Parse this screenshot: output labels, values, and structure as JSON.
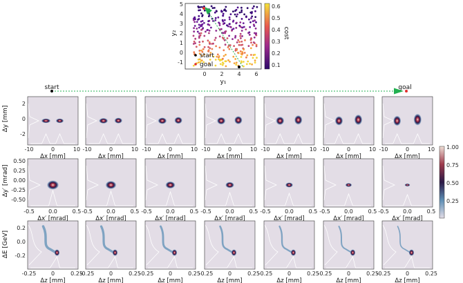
{
  "figure": {
    "scatter": {
      "xlabel": "y₁",
      "ylabel": "y₂",
      "xticks": [
        "0",
        "2",
        "4",
        "6"
      ],
      "yticks": [
        "5",
        "4",
        "3",
        "2",
        "1",
        "0",
        "-1"
      ],
      "legend": [
        "start",
        "goal"
      ],
      "colorbar_label": "cost",
      "colorbar_ticks": [
        "0.6",
        "0.5",
        "0.4",
        "0.3",
        "0.2",
        "0.1"
      ]
    },
    "trajectory": {
      "start_label": "start",
      "goal_label": "goal"
    },
    "rows": [
      {
        "ylabel": "Δy [mm]",
        "yticks": [
          "2",
          "0",
          "-2"
        ],
        "xlabel": "Δx [mm]",
        "xticks": [
          "-10",
          "0",
          "10"
        ]
      },
      {
        "ylabel": "Δy′ [mrad]",
        "yticks": [
          "0.50",
          "0.25",
          "0.00",
          "-0.25",
          "-0.50"
        ],
        "xlabel": "Δx′ [mrad]",
        "xticks": [
          "-0.5",
          "0.0",
          "0.5"
        ]
      },
      {
        "ylabel": "ΔE [GeV]",
        "yticks": [
          "0.2",
          "0.0",
          "-0.2"
        ],
        "xlabel": "Δz [mm]",
        "xticks": [
          "-0.25",
          "0",
          "0.25"
        ]
      }
    ],
    "density_colorbar_ticks": [
      "1.00",
      "0.75",
      "0.50",
      "0.25"
    ]
  },
  "chart_data": [
    {
      "type": "scatter",
      "xlim": [
        -1,
        6.5
      ],
      "ylim": [
        -1.5,
        5
      ],
      "xlabel": "y₁",
      "ylabel": "y₂",
      "color_label": "cost",
      "color_range": [
        0.1,
        0.65
      ],
      "markers": [
        {
          "name": "start",
          "x": 4,
          "y": -1.2,
          "color": "#000000"
        },
        {
          "name": "goal",
          "x": 0.3,
          "y": 4.8,
          "color": "#e0302e"
        }
      ]
    },
    {
      "type": "heatmap",
      "rows": 3,
      "columns": 7,
      "color_range": [
        0,
        1
      ]
    }
  ]
}
